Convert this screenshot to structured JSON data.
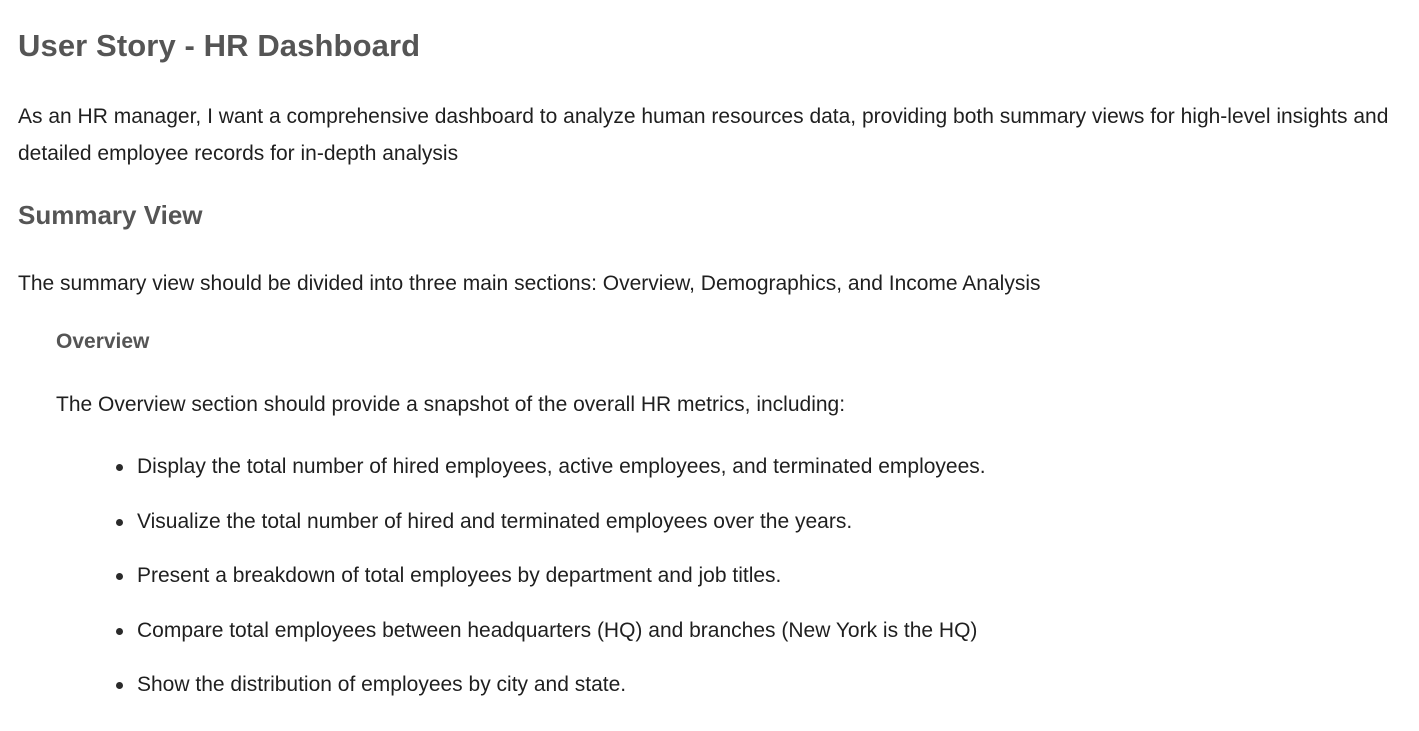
{
  "document": {
    "title": "User Story - HR Dashboard",
    "intro": "As an HR manager, I want a comprehensive dashboard to analyze human resources data, providing both summary views for high-level insights and detailed employee records for in-depth analysis",
    "summary_heading": "Summary View",
    "summary_text": "The summary view should be divided into three main sections: Overview, Demographics, and Income Analysis",
    "overview_heading": "Overview",
    "overview_text": "The Overview section should provide a snapshot of the overall HR metrics, including:",
    "bullets": [
      "Display the total number of hired employees, active employees, and terminated employees.",
      "Visualize the total number of hired and terminated employees over the years.",
      "Present a breakdown of total employees by department and job titles.",
      "Compare total employees between headquarters (HQ) and branches (New York is the HQ)",
      "Show the distribution of employees by city and state."
    ]
  }
}
